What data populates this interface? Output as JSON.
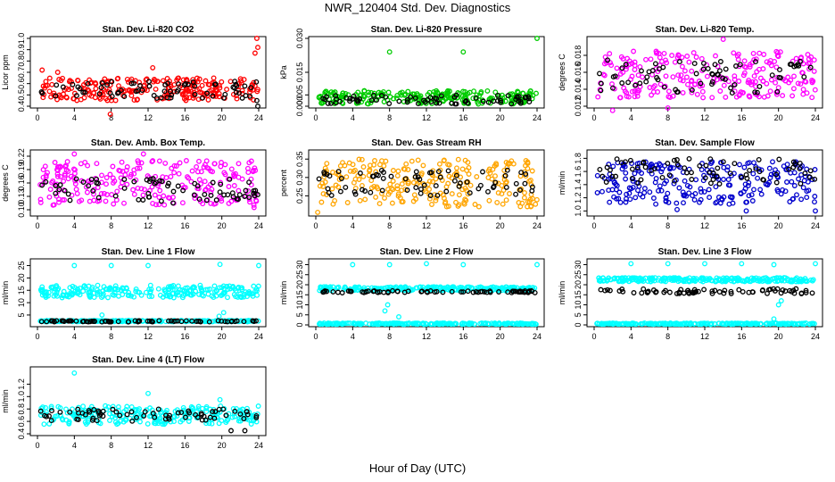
{
  "page": {
    "title": "NWR_120404 Std. Dev. Diagnostics",
    "x_axis_title": "Hour of Day (UTC)"
  },
  "chart_data": [
    {
      "type": "scatter",
      "title": "Stan. Dev. Li-820 CO2",
      "ylabel": "Licor ppm",
      "xlim": [
        0,
        24
      ],
      "ylim": [
        0.4,
        1.0
      ],
      "x_ticks": [
        "0",
        "4",
        "8",
        "12",
        "16",
        "20",
        "24"
      ],
      "y_ticks": [
        "0.4",
        "0.5",
        "0.6",
        "0.7",
        "0.8",
        "0.9",
        "1.0"
      ],
      "series": [
        {
          "color": "#ff0000",
          "band": [
            0.45,
            0.65
          ],
          "outliers": [
            [
              0.5,
              0.72
            ],
            [
              2.2,
              0.7
            ],
            [
              7.9,
              0.33
            ],
            [
              12.5,
              0.74
            ],
            [
              23.6,
              0.87
            ],
            [
              23.8,
              1.0
            ],
            [
              23.9,
              0.92
            ]
          ]
        },
        {
          "color": "#000000",
          "band": [
            0.47,
            0.62
          ],
          "outliers": [
            [
              23.8,
              0.45
            ],
            [
              23.9,
              0.4
            ]
          ]
        }
      ]
    },
    {
      "type": "scatter",
      "title": "Stan. Dev. Li-820 Pressure",
      "ylabel": "kPa",
      "xlim": [
        0,
        24
      ],
      "ylim": [
        0.0,
        0.03
      ],
      "x_ticks": [
        "0",
        "4",
        "8",
        "12",
        "16",
        "20",
        "24"
      ],
      "y_ticks": [
        "0.000",
        "0.005",
        "0.015",
        "0.030"
      ],
      "series": [
        {
          "color": "#00cc00",
          "band": [
            0.001,
            0.007
          ],
          "outliers": [
            [
              8.0,
              0.024
            ],
            [
              16.0,
              0.024
            ],
            [
              24.0,
              0.03
            ]
          ]
        },
        {
          "color": "#000000",
          "band": [
            0.001,
            0.005
          ],
          "outliers": []
        }
      ]
    },
    {
      "type": "scatter",
      "title": "Stan. Dev. Li-820 Temp.",
      "ylabel": "degrees C",
      "xlim": [
        0,
        24
      ],
      "ylim": [
        0.012,
        0.02
      ],
      "x_ticks": [
        "0",
        "4",
        "8",
        "12",
        "16",
        "20",
        "24"
      ],
      "y_ticks": [
        "0.012",
        "0.014",
        "0.016",
        "0.018"
      ],
      "series": [
        {
          "color": "#ff00ff",
          "band": [
            0.013,
            0.0185
          ],
          "outliers": [
            [
              2.0,
              0.0115
            ],
            [
              8.0,
              0.0118
            ],
            [
              14.0,
              0.0199
            ]
          ]
        },
        {
          "color": "#000000",
          "band": [
            0.0135,
            0.0175
          ],
          "outliers": []
        }
      ]
    },
    {
      "type": "scatter",
      "title": "Stan. Dev. Amb. Box Temp.",
      "ylabel": "degrees C",
      "xlim": [
        0,
        24
      ],
      "ylim": [
        0.09,
        0.23
      ],
      "x_ticks": [
        "0",
        "4",
        "8",
        "12",
        "16",
        "20",
        "24"
      ],
      "y_ticks": [
        "0.10",
        "0.13",
        "0.16",
        "0.19",
        "0.22"
      ],
      "series": [
        {
          "color": "#ff00ff",
          "band": [
            0.11,
            0.21
          ],
          "outliers": [
            [
              4.0,
              0.225
            ],
            [
              11.5,
              0.225
            ],
            [
              23.5,
              0.105
            ]
          ]
        },
        {
          "color": "#000000",
          "band": [
            0.115,
            0.17
          ],
          "outliers": []
        }
      ]
    },
    {
      "type": "scatter",
      "title": "Stan. Dev. Gas Stream RH",
      "ylabel": "percent",
      "xlim": [
        0,
        24
      ],
      "ylim": [
        0.2,
        0.37
      ],
      "x_ticks": [
        "0",
        "4",
        "8",
        "12",
        "16",
        "20",
        "24"
      ],
      "y_ticks": [
        "0.25",
        "0.30",
        "0.35"
      ],
      "series": [
        {
          "color": "#ffa500",
          "band": [
            0.22,
            0.35
          ],
          "outliers": [
            [
              0.2,
              0.205
            ]
          ]
        },
        {
          "color": "#000000",
          "band": [
            0.25,
            0.32
          ],
          "outliers": []
        }
      ]
    },
    {
      "type": "scatter",
      "title": "Stan. Dev. Sample Flow",
      "ylabel": "ml/min",
      "xlim": [
        0,
        24
      ],
      "ylim": [
        0.95,
        1.9
      ],
      "x_ticks": [
        "0",
        "4",
        "8",
        "12",
        "16",
        "20",
        "24"
      ],
      "y_ticks": [
        "1.0",
        "1.2",
        "1.4",
        "1.6",
        "1.8"
      ],
      "series": [
        {
          "color": "#0000cd",
          "band": [
            1.1,
            1.75
          ],
          "outliers": [
            [
              9.0,
              1.02
            ],
            [
              16.5,
              1.0
            ],
            [
              24.0,
              1.0
            ]
          ]
        },
        {
          "color": "#000000",
          "band": [
            1.4,
            1.8
          ],
          "outliers": []
        }
      ]
    },
    {
      "type": "scatter",
      "title": "Stan. Dev. Line 1 Flow",
      "ylabel": "ml/min",
      "xlim": [
        0,
        24
      ],
      "ylim": [
        1,
        27
      ],
      "x_ticks": [
        "0",
        "4",
        "8",
        "12",
        "16",
        "20",
        "24"
      ],
      "y_ticks": [
        "5",
        "10",
        "15",
        "20",
        "25"
      ],
      "series": [
        {
          "color": "#00ffff",
          "band": [
            12,
            17
          ],
          "outliers": [
            [
              4.0,
              25
            ],
            [
              8.0,
              25
            ],
            [
              12.0,
              25
            ],
            [
              19.8,
              25.5
            ],
            [
              24.0,
              25
            ],
            [
              7.0,
              5
            ],
            [
              19.7,
              4.5
            ],
            [
              20.2,
              6
            ]
          ]
        },
        {
          "color": "#00ffff",
          "band": [
            2.3,
            2.8
          ],
          "outliers": []
        },
        {
          "color": "#000000",
          "band": [
            2.2,
            2.7
          ],
          "outliers": []
        }
      ]
    },
    {
      "type": "scatter",
      "title": "Stan. Dev. Line 2 Flow",
      "ylabel": "ml/min",
      "xlim": [
        0,
        24
      ],
      "ylim": [
        0,
        32
      ],
      "x_ticks": [
        "0",
        "4",
        "8",
        "12",
        "16",
        "20",
        "24"
      ],
      "y_ticks": [
        "0",
        "5",
        "10",
        "15",
        "20",
        "25",
        "30"
      ],
      "series": [
        {
          "color": "#00ffff",
          "band": [
            17,
            19
          ],
          "outliers": [
            [
              4.0,
              30
            ],
            [
              8.0,
              30
            ],
            [
              12.0,
              30.5
            ],
            [
              16.0,
              30
            ],
            [
              24.0,
              30
            ],
            [
              7.5,
              7
            ],
            [
              7.8,
              10
            ],
            [
              9.0,
              4
            ]
          ]
        },
        {
          "color": "#00ffff",
          "band": [
            0.3,
            0.9
          ],
          "outliers": []
        },
        {
          "color": "#000000",
          "band": [
            16,
            17
          ],
          "outliers": []
        }
      ]
    },
    {
      "type": "scatter",
      "title": "Stan. Dev. Line 3 Flow",
      "ylabel": "ml/min",
      "xlim": [
        0,
        24
      ],
      "ylim": [
        0,
        32
      ],
      "x_ticks": [
        "0",
        "4",
        "8",
        "12",
        "16",
        "20",
        "24"
      ],
      "y_ticks": [
        "0",
        "5",
        "10",
        "15",
        "20",
        "25",
        "30"
      ],
      "series": [
        {
          "color": "#00ffff",
          "band": [
            21.5,
            23.5
          ],
          "outliers": [
            [
              4.0,
              30.5
            ],
            [
              8.0,
              30.5
            ],
            [
              12.0,
              30.5
            ],
            [
              16.0,
              30.5
            ],
            [
              19.5,
              30
            ],
            [
              24.0,
              30.5
            ],
            [
              19.5,
              3
            ],
            [
              20.0,
              10
            ],
            [
              20.3,
              12
            ]
          ]
        },
        {
          "color": "#00ffff",
          "band": [
            0.3,
            0.9
          ],
          "outliers": []
        },
        {
          "color": "#000000",
          "band": [
            15.5,
            18
          ],
          "outliers": []
        }
      ]
    },
    {
      "type": "scatter",
      "title": "Stan. Dev. Line 4 (LT) Flow",
      "ylabel": "ml/min",
      "xlim": [
        0,
        24
      ],
      "ylim": [
        0.4,
        1.45
      ],
      "x_ticks": [
        "0",
        "4",
        "8",
        "12",
        "16",
        "20",
        "24"
      ],
      "y_ticks": [
        "0.4",
        "0.6",
        "0.8",
        "1.0",
        "1.2"
      ],
      "series": [
        {
          "color": "#00ffff",
          "band": [
            0.55,
            0.85
          ],
          "outliers": [
            [
              4.0,
              1.38
            ],
            [
              12.0,
              1.05
            ],
            [
              19.8,
              0.95
            ]
          ]
        },
        {
          "color": "#000000",
          "band": [
            0.6,
            0.8
          ],
          "outliers": [
            [
              21.0,
              0.45
            ],
            [
              22.5,
              0.45
            ]
          ]
        }
      ]
    }
  ]
}
